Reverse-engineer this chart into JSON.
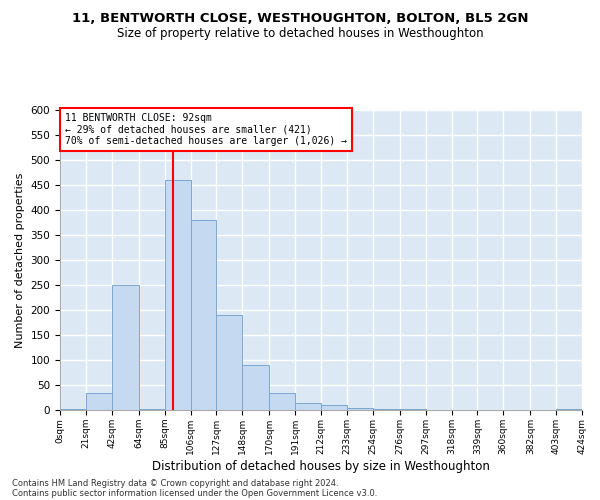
{
  "title": "11, BENTWORTH CLOSE, WESTHOUGHTON, BOLTON, BL5 2GN",
  "subtitle": "Size of property relative to detached houses in Westhoughton",
  "xlabel": "Distribution of detached houses by size in Westhoughton",
  "ylabel": "Number of detached properties",
  "footnote1": "Contains HM Land Registry data © Crown copyright and database right 2024.",
  "footnote2": "Contains public sector information licensed under the Open Government Licence v3.0.",
  "annotation_line1": "11 BENTWORTH CLOSE: 92sqm",
  "annotation_line2": "← 29% of detached houses are smaller (421)",
  "annotation_line3": "70% of semi-detached houses are larger (1,026) →",
  "bar_color": "#c5d9f0",
  "bar_edge_color": "#7ba7d0",
  "background_color": "#dce9f5",
  "grid_color": "#ffffff",
  "red_line_x": 92,
  "bin_edges": [
    0,
    21,
    42,
    64,
    85,
    106,
    127,
    148,
    170,
    191,
    212,
    233,
    254,
    276,
    297,
    318,
    339,
    360,
    382,
    403,
    424
  ],
  "bin_labels": [
    "0sqm",
    "21sqm",
    "42sqm",
    "64sqm",
    "85sqm",
    "106sqm",
    "127sqm",
    "148sqm",
    "170sqm",
    "191sqm",
    "212sqm",
    "233sqm",
    "254sqm",
    "276sqm",
    "297sqm",
    "318sqm",
    "339sqm",
    "360sqm",
    "382sqm",
    "403sqm",
    "424sqm"
  ],
  "bar_heights": [
    2,
    35,
    250,
    3,
    460,
    380,
    190,
    90,
    35,
    15,
    10,
    5,
    2,
    2,
    0,
    1,
    0,
    0,
    0,
    2
  ],
  "ylim": [
    0,
    600
  ],
  "yticks": [
    0,
    50,
    100,
    150,
    200,
    250,
    300,
    350,
    400,
    450,
    500,
    550,
    600
  ]
}
